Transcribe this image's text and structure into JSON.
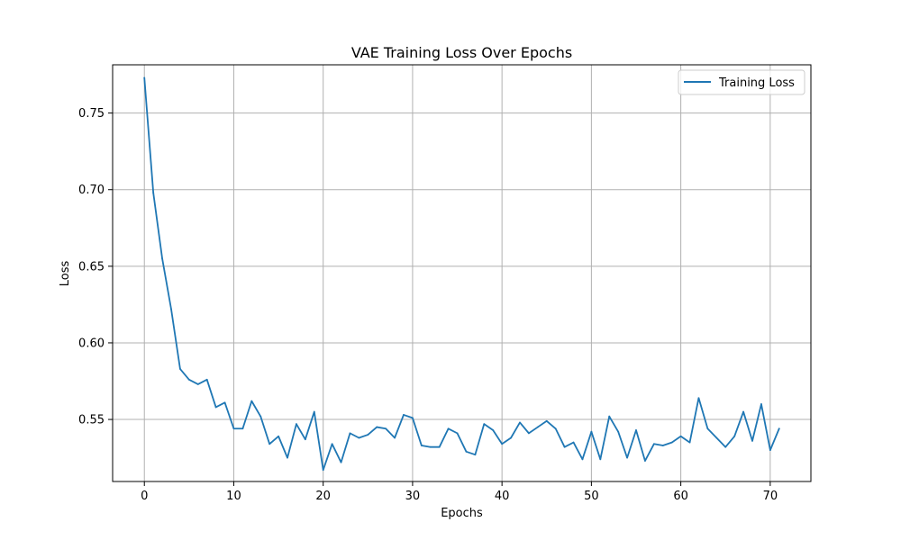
{
  "chart_data": {
    "type": "line",
    "title": "VAE Training Loss Over Epochs",
    "xlabel": "Epochs",
    "ylabel": "Loss",
    "xlim": [
      -3.55,
      74.55
    ],
    "ylim": [
      0.5095,
      0.7815
    ],
    "xticks": [
      0,
      10,
      20,
      30,
      40,
      50,
      60,
      70
    ],
    "xtick_labels": [
      "0",
      "10",
      "20",
      "30",
      "40",
      "50",
      "60",
      "70"
    ],
    "yticks": [
      0.55,
      0.6,
      0.65,
      0.7,
      0.75
    ],
    "ytick_labels": [
      "0.55",
      "0.60",
      "0.65",
      "0.70",
      "0.75"
    ],
    "grid": true,
    "legend_position": "top-right",
    "series": [
      {
        "name": "Training Loss",
        "color": "#1f77b4",
        "x": [
          0,
          1,
          2,
          3,
          4,
          5,
          6,
          7,
          8,
          9,
          10,
          11,
          12,
          13,
          14,
          15,
          16,
          17,
          18,
          19,
          20,
          21,
          22,
          23,
          24,
          25,
          26,
          27,
          28,
          29,
          30,
          31,
          32,
          33,
          34,
          35,
          36,
          37,
          38,
          39,
          40,
          41,
          42,
          43,
          44,
          45,
          46,
          47,
          48,
          49,
          50,
          51,
          52,
          53,
          54,
          55,
          56,
          57,
          58,
          59,
          60,
          61,
          62,
          63,
          64,
          65,
          66,
          67,
          68,
          69,
          70,
          71
        ],
        "y": [
          0.773,
          0.698,
          0.655,
          0.622,
          0.583,
          0.576,
          0.573,
          0.576,
          0.558,
          0.561,
          0.544,
          0.544,
          0.562,
          0.552,
          0.534,
          0.539,
          0.525,
          0.547,
          0.537,
          0.555,
          0.517,
          0.534,
          0.522,
          0.541,
          0.538,
          0.54,
          0.545,
          0.544,
          0.538,
          0.553,
          0.551,
          0.533,
          0.532,
          0.532,
          0.544,
          0.541,
          0.529,
          0.527,
          0.547,
          0.543,
          0.534,
          0.538,
          0.548,
          0.541,
          0.545,
          0.549,
          0.544,
          0.532,
          0.535,
          0.524,
          0.542,
          0.524,
          0.552,
          0.542,
          0.525,
          0.543,
          0.523,
          0.534,
          0.533,
          0.535,
          0.539,
          0.535,
          0.564,
          0.544,
          0.538,
          0.532,
          0.539,
          0.555,
          0.536,
          0.56,
          0.53,
          0.544
        ]
      }
    ]
  }
}
